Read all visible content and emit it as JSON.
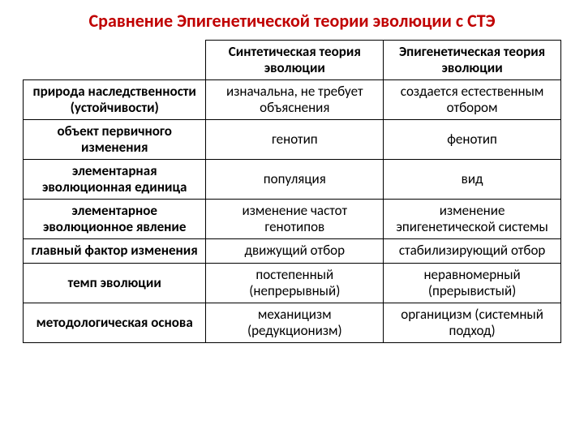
{
  "title": "Сравнение Эпигенетической теории эволюции с СТЭ",
  "table": {
    "col1_header": "Синтетическая теория эволюции",
    "col2_header": "Эпигенетическая теория эволюции",
    "rows": [
      {
        "label": "природа наследственности (устойчивости)",
        "c1": "изначальна, не требует объяснения",
        "c2": "создается естественным отбором"
      },
      {
        "label": "объект первичного изменения",
        "c1": "генотип",
        "c2": "фенотип"
      },
      {
        "label": "элементарная эволюционная единица",
        "c1": "популяция",
        "c2": "вид"
      },
      {
        "label": "элементарное эволюционное явление",
        "c1": "изменение частот генотипов",
        "c2": "изменение эпигенетической системы"
      },
      {
        "label": "главный фактор изменения",
        "c1": "движущий отбор",
        "c2": "стабилизирующий отбор"
      },
      {
        "label": "темп эволюции",
        "c1": "постепенный (непрерывный)",
        "c2": "неравномерный (прерывистый)"
      },
      {
        "label": "методологическая основа",
        "c1": "механицизм (редукционизм)",
        "c2": "органицизм (системный подход)"
      }
    ]
  }
}
